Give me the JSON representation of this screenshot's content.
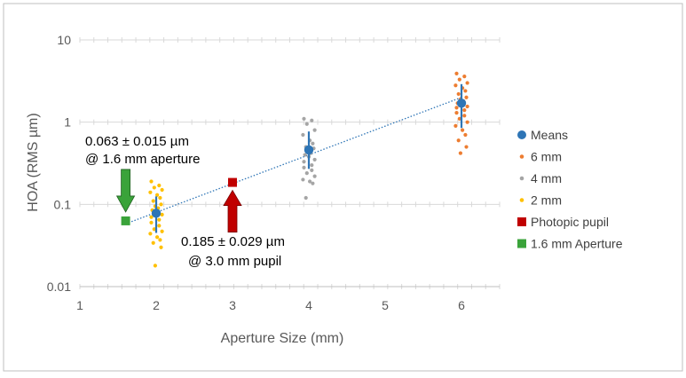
{
  "chart_data": {
    "type": "scatter",
    "title": "",
    "xlabel": "Aperture Size (mm)",
    "ylabel": "HOA (RMS µm)",
    "xlim": [
      1,
      6.5
    ],
    "ylim": [
      0.01,
      10
    ],
    "yscale": "log",
    "x_ticks": [
      "1",
      "2",
      "3",
      "4",
      "5",
      "6"
    ],
    "y_ticks": [
      "0.01",
      "0.1",
      "1",
      "10"
    ],
    "grid": "horizontal",
    "legend_position": "right",
    "series": [
      {
        "name": "Means",
        "color": "#2e75b6",
        "marker": "circle-large",
        "points": [
          {
            "x": 2,
            "y": 0.078,
            "err_low": 0.045,
            "err_high": 0.125
          },
          {
            "x": 4,
            "y": 0.46,
            "err_low": 0.27,
            "err_high": 0.77
          },
          {
            "x": 6,
            "y": 1.7,
            "err_low": 0.85,
            "err_high": 2.9
          }
        ]
      },
      {
        "name": "6 mm",
        "color": "#ed7d31",
        "marker": "dot",
        "x": 6,
        "values": [
          3.9,
          3.6,
          3.3,
          3.0,
          2.8,
          2.6,
          2.4,
          2.2,
          2.0,
          1.9,
          1.8,
          1.7,
          1.6,
          1.55,
          1.5,
          1.4,
          1.3,
          1.2,
          1.1,
          1.0,
          0.9,
          0.8,
          0.7,
          0.6,
          0.5,
          0.42
        ]
      },
      {
        "name": "4 mm",
        "color": "#a5a5a5",
        "marker": "dot",
        "x": 4,
        "values": [
          1.1,
          1.05,
          0.95,
          0.8,
          0.7,
          0.6,
          0.55,
          0.5,
          0.48,
          0.45,
          0.42,
          0.4,
          0.38,
          0.35,
          0.33,
          0.3,
          0.28,
          0.26,
          0.24,
          0.22,
          0.2,
          0.19,
          0.18,
          0.12
        ]
      },
      {
        "name": "2 mm",
        "color": "#ffc000",
        "marker": "dot",
        "x": 2,
        "values": [
          0.19,
          0.17,
          0.16,
          0.15,
          0.14,
          0.13,
          0.12,
          0.11,
          0.1,
          0.095,
          0.09,
          0.085,
          0.08,
          0.075,
          0.07,
          0.065,
          0.06,
          0.055,
          0.05,
          0.047,
          0.044,
          0.04,
          0.037,
          0.034,
          0.03,
          0.018
        ]
      },
      {
        "name": "Photopic pupil",
        "color": "#c00000",
        "marker": "square",
        "points": [
          {
            "x": 3,
            "y": 0.185
          }
        ]
      },
      {
        "name": "1.6 mm Aperture",
        "color": "#3aa33a",
        "marker": "square",
        "points": [
          {
            "x": 1.6,
            "y": 0.063
          }
        ]
      }
    ],
    "trendline": {
      "style": "dotted",
      "color": "#2e75b6",
      "x": [
        1.6,
        6
      ],
      "y": [
        0.058,
        2.0
      ]
    },
    "annotations": [
      {
        "name": "green",
        "line1": "0.063 ± 0.015 µm",
        "line2": "@ 1.6 mm aperture",
        "arrow_color": "#3aa33a"
      },
      {
        "name": "red",
        "line1": "0.185 ± 0.029 µm",
        "line2": "@ 3.0 mm pupil",
        "arrow_color": "#c00000"
      }
    ]
  }
}
